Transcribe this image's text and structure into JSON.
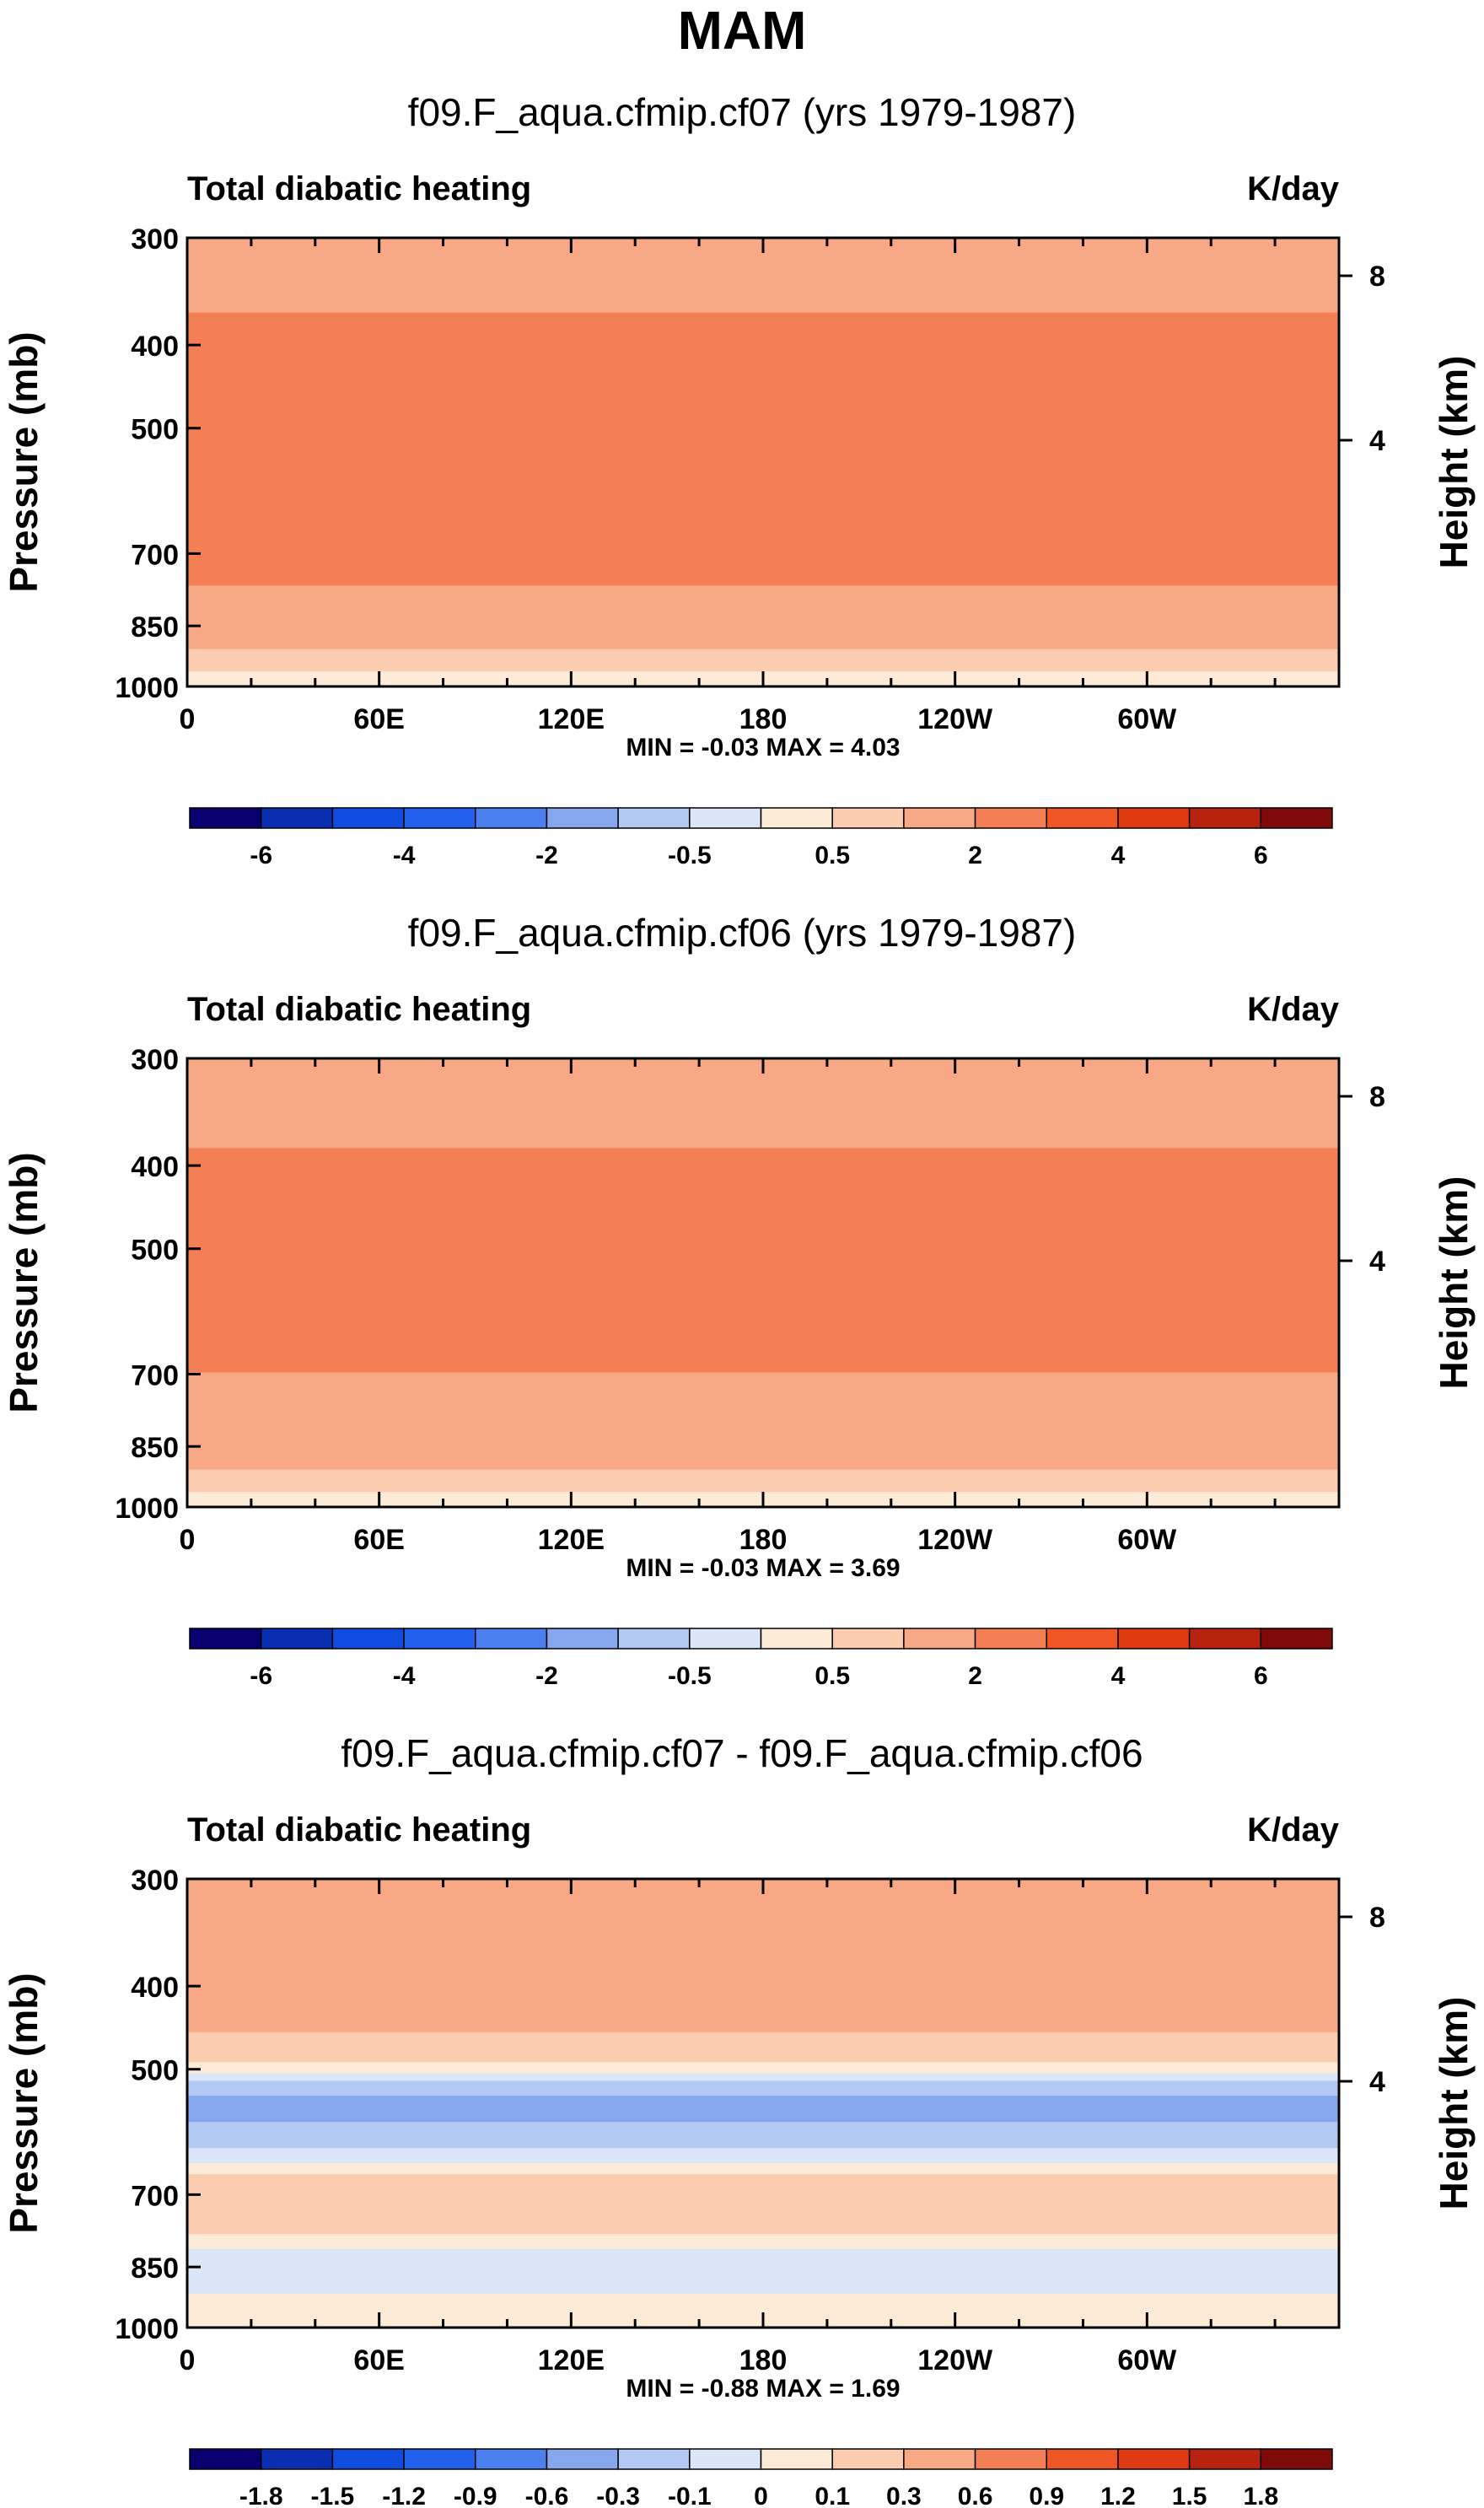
{
  "figure_title": "MAM",
  "chart_data": [
    {
      "type": "heatmap",
      "title": "f09.F_aqua.cfmip.cf07 (yrs 1979-1987)",
      "left_label": "Total diabatic heating",
      "units": "K/day",
      "ylabel": "Pressure (mb)",
      "ylabel_right": "Height (km)",
      "x_ticks": [
        "0",
        "60E",
        "120E",
        "180",
        "120W",
        "60W"
      ],
      "y_ticks": [
        "300",
        "400",
        "500",
        "700",
        "850",
        "1000"
      ],
      "right_ticks": [
        "8",
        "4"
      ],
      "xlim": [
        0,
        360
      ],
      "ylim": [
        1000,
        300
      ],
      "y_scale": "log",
      "min_max": "MIN =  -0.03  MAX =   4.03",
      "min": -0.03,
      "max": 4.03,
      "field_profile": [
        {
          "p": 300,
          "v": 1.4
        },
        {
          "p": 400,
          "v": 2.3
        },
        {
          "p": 500,
          "v": 3.0
        },
        {
          "p": 600,
          "v": 2.4
        },
        {
          "p": 700,
          "v": 2.3
        },
        {
          "p": 850,
          "v": 1.6
        },
        {
          "p": 925,
          "v": 0.8
        },
        {
          "p": 1000,
          "v": 0.2
        }
      ],
      "colorbar": {
        "levels": [
          -6,
          -5,
          -4,
          -3,
          -2,
          -1,
          -0.5,
          0,
          0.5,
          1,
          2,
          3,
          4,
          5,
          6
        ],
        "labels": [
          "-6",
          "-4",
          "-2",
          "-0.5",
          "0.5",
          "2",
          "4",
          "6"
        ],
        "colors": [
          "#08006e",
          "#0a2eb0",
          "#0e4de0",
          "#2060ec",
          "#4c7ff0",
          "#86a6ee",
          "#b3c8f2",
          "#dbe6f8",
          "#fdebd8",
          "#fcccb0",
          "#f8a884",
          "#f57f54",
          "#f05525",
          "#e03a12",
          "#b82310",
          "#7e0a0a"
        ]
      }
    },
    {
      "type": "heatmap",
      "title": "f09.F_aqua.cfmip.cf06 (yrs 1979-1987)",
      "left_label": "Total diabatic heating",
      "units": "K/day",
      "ylabel": "Pressure (mb)",
      "ylabel_right": "Height (km)",
      "x_ticks": [
        "0",
        "60E",
        "120E",
        "180",
        "120W",
        "60W"
      ],
      "y_ticks": [
        "300",
        "400",
        "500",
        "700",
        "850",
        "1000"
      ],
      "right_ticks": [
        "8",
        "4"
      ],
      "xlim": [
        0,
        360
      ],
      "ylim": [
        1000,
        300
      ],
      "y_scale": "log",
      "min_max": "MIN =  -0.03  MAX =   3.69",
      "min": -0.03,
      "max": 3.69,
      "field_profile": [
        {
          "p": 300,
          "v": 1.2
        },
        {
          "p": 400,
          "v": 2.2
        },
        {
          "p": 500,
          "v": 3.0
        },
        {
          "p": 600,
          "v": 2.3
        },
        {
          "p": 700,
          "v": 2.0
        },
        {
          "p": 850,
          "v": 1.7
        },
        {
          "p": 925,
          "v": 0.8
        },
        {
          "p": 1000,
          "v": 0.2
        }
      ],
      "colorbar": {
        "levels": [
          -6,
          -5,
          -4,
          -3,
          -2,
          -1,
          -0.5,
          0,
          0.5,
          1,
          2,
          3,
          4,
          5,
          6
        ],
        "labels": [
          "-6",
          "-4",
          "-2",
          "-0.5",
          "0.5",
          "2",
          "4",
          "6"
        ],
        "colors": [
          "#08006e",
          "#0a2eb0",
          "#0e4de0",
          "#2060ec",
          "#4c7ff0",
          "#86a6ee",
          "#b3c8f2",
          "#dbe6f8",
          "#fdebd8",
          "#fcccb0",
          "#f8a884",
          "#f57f54",
          "#f05525",
          "#e03a12",
          "#b82310",
          "#7e0a0a"
        ]
      }
    },
    {
      "type": "heatmap",
      "title": "f09.F_aqua.cfmip.cf07 - f09.F_aqua.cfmip.cf06",
      "left_label": "Total diabatic heating",
      "units": "K/day",
      "ylabel": "Pressure (mb)",
      "ylabel_right": "Height (km)",
      "x_ticks": [
        "0",
        "60E",
        "120E",
        "180",
        "120W",
        "60W"
      ],
      "y_ticks": [
        "300",
        "400",
        "500",
        "700",
        "850",
        "1000"
      ],
      "right_ticks": [
        "8",
        "4"
      ],
      "xlim": [
        0,
        360
      ],
      "ylim": [
        1000,
        300
      ],
      "y_scale": "log",
      "min_max": "MIN =  -0.88  MAX =   1.69",
      "min": -0.88,
      "max": 1.69,
      "field_profile": [
        {
          "p": 300,
          "v": 0.5
        },
        {
          "p": 400,
          "v": 0.6
        },
        {
          "p": 500,
          "v": 0.05
        },
        {
          "p": 550,
          "v": -0.4
        },
        {
          "p": 620,
          "v": -0.1
        },
        {
          "p": 700,
          "v": 0.3
        },
        {
          "p": 850,
          "v": -0.1
        },
        {
          "p": 950,
          "v": 0.05
        },
        {
          "p": 1000,
          "v": 0.02
        }
      ],
      "colorbar": {
        "levels": [
          -1.8,
          -1.5,
          -1.2,
          -0.9,
          -0.6,
          -0.3,
          -0.1,
          0,
          0.1,
          0.3,
          0.6,
          0.9,
          1.2,
          1.5,
          1.8
        ],
        "labels": [
          "-1.8",
          "-1.5",
          "-1.2",
          "-0.9",
          "-0.6",
          "-0.3",
          "-0.1",
          "0",
          "0.1",
          "0.3",
          "0.6",
          "0.9",
          "1.2",
          "1.5",
          "1.8"
        ],
        "colors": [
          "#08006e",
          "#0a2eb0",
          "#0e4de0",
          "#2060ec",
          "#4c7ff0",
          "#86a6ee",
          "#b3c8f2",
          "#dbe6f8",
          "#fdebd8",
          "#fcccb0",
          "#f8a884",
          "#f57f54",
          "#f05525",
          "#e03a12",
          "#b82310",
          "#7e0a0a"
        ]
      }
    }
  ]
}
